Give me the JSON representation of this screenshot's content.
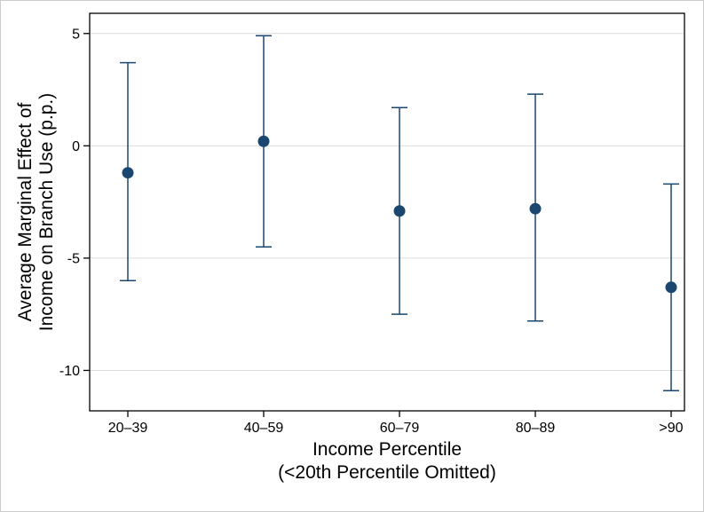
{
  "figure": {
    "background": "#ffffff",
    "border_color": "#cccccc"
  },
  "chart_data": {
    "type": "scatter",
    "subtype": "point-estimates-with-confidence-intervals",
    "title": "",
    "xlabel_lines": [
      "Income Percentile",
      "(<20th Percentile Omitted)"
    ],
    "ylabel_lines": [
      "Average Marginal Effect of",
      "Income on Branch Use (p.p.)"
    ],
    "categories": [
      "20–39",
      "40–59",
      "60–79",
      "80–89",
      ">90"
    ],
    "series": [
      {
        "name": "Average marginal effect",
        "values": [
          -1.2,
          0.2,
          -2.9,
          -2.8,
          -6.3
        ]
      }
    ],
    "ci_high": [
      3.7,
      4.9,
      1.7,
      2.3,
      -1.7
    ],
    "ci_low": [
      -6.0,
      -4.5,
      -7.5,
      -7.8,
      -10.9
    ],
    "yticks": [
      5,
      0,
      -5,
      -10
    ],
    "ytick_labels": [
      "5",
      "0",
      "-5",
      "-10"
    ],
    "ylim": [
      -11.8,
      5.9
    ],
    "grid": true,
    "legend": "none",
    "colors": {
      "marker": "#1a476f",
      "error_bar": "#1a476f",
      "gridline": "#dcdcdc",
      "axis": "#000000",
      "text": "#000000"
    }
  }
}
